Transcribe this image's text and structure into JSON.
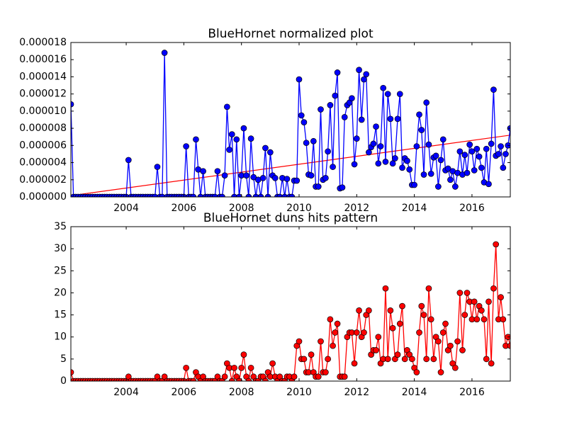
{
  "chart_data": [
    {
      "type": "line",
      "title": "BlueHornet normalized plot",
      "xlim": [
        2002.08,
        2017.33
      ],
      "xticks": [
        2004,
        2006,
        2008,
        2010,
        2012,
        2014,
        2016
      ],
      "ylim": [
        0,
        1.8e-05
      ],
      "yticks": [
        {
          "value": 0,
          "label": "0.000000"
        },
        {
          "value": 2e-06,
          "label": "0.000002"
        },
        {
          "value": 4e-06,
          "label": "0.000004"
        },
        {
          "value": 6e-06,
          "label": "0.000006"
        },
        {
          "value": 8e-06,
          "label": "0.000008"
        },
        {
          "value": 1e-05,
          "label": "0.000010"
        },
        {
          "value": 1.2e-05,
          "label": "0.000012"
        },
        {
          "value": 1.4e-05,
          "label": "0.000014"
        },
        {
          "value": 1.6e-05,
          "label": "0.000016"
        },
        {
          "value": 1.8e-05,
          "label": "0.000018"
        }
      ],
      "x": [
        2002.08,
        2002.17,
        2002.25,
        2002.33,
        2002.42,
        2002.5,
        2002.58,
        2002.67,
        2002.75,
        2002.83,
        2002.92,
        2003,
        2003.08,
        2003.17,
        2003.25,
        2003.33,
        2003.42,
        2003.5,
        2003.58,
        2003.67,
        2003.75,
        2003.83,
        2003.92,
        2004,
        2004.08,
        2004.17,
        2004.25,
        2004.33,
        2004.42,
        2004.5,
        2004.58,
        2004.67,
        2004.75,
        2004.83,
        2004.92,
        2005,
        2005.08,
        2005.17,
        2005.25,
        2005.33,
        2005.42,
        2005.5,
        2005.58,
        2005.67,
        2005.75,
        2005.83,
        2005.92,
        2006,
        2006.08,
        2006.17,
        2006.25,
        2006.33,
        2006.42,
        2006.5,
        2006.58,
        2006.67,
        2006.75,
        2006.83,
        2006.92,
        2007,
        2007.08,
        2007.17,
        2007.25,
        2007.33,
        2007.42,
        2007.5,
        2007.58,
        2007.67,
        2007.75,
        2007.83,
        2007.92,
        2008,
        2008.08,
        2008.17,
        2008.25,
        2008.33,
        2008.42,
        2008.5,
        2008.58,
        2008.67,
        2008.75,
        2008.83,
        2008.92,
        2009,
        2009.08,
        2009.17,
        2009.25,
        2009.33,
        2009.42,
        2009.5,
        2009.58,
        2009.67,
        2009.75,
        2009.83,
        2009.92,
        2010,
        2010.08,
        2010.17,
        2010.25,
        2010.33,
        2010.42,
        2010.5,
        2010.58,
        2010.67,
        2010.75,
        2010.83,
        2010.92,
        2011,
        2011.08,
        2011.17,
        2011.25,
        2011.33,
        2011.42,
        2011.5,
        2011.58,
        2011.67,
        2011.75,
        2011.83,
        2011.92,
        2012,
        2012.08,
        2012.17,
        2012.25,
        2012.33,
        2012.42,
        2012.5,
        2012.58,
        2012.67,
        2012.75,
        2012.83,
        2012.92,
        2013,
        2013.08,
        2013.17,
        2013.25,
        2013.33,
        2013.42,
        2013.5,
        2013.58,
        2013.67,
        2013.75,
        2013.83,
        2013.92,
        2014,
        2014.08,
        2014.17,
        2014.25,
        2014.33,
        2014.42,
        2014.5,
        2014.58,
        2014.67,
        2014.75,
        2014.83,
        2014.92,
        2015,
        2015.08,
        2015.17,
        2015.25,
        2015.33,
        2015.42,
        2015.5,
        2015.58,
        2015.67,
        2015.75,
        2015.83,
        2015.92,
        2016,
        2016.08,
        2016.17,
        2016.25,
        2016.33,
        2016.42,
        2016.5,
        2016.58,
        2016.67,
        2016.75,
        2016.83,
        2016.92,
        2017,
        2017.08,
        2017.17,
        2017.25,
        2017.33
      ],
      "series": [
        {
          "color": "#0000ff",
          "values": [
            1.08e-05,
            0,
            0,
            0,
            0,
            0,
            0,
            0,
            0,
            0,
            0,
            0,
            0,
            0,
            0,
            0,
            0,
            0,
            0,
            0,
            0,
            0,
            0,
            0,
            4.3e-06,
            0,
            0,
            0,
            0,
            0,
            0,
            0,
            0,
            0,
            0,
            0,
            3.5e-06,
            0,
            0,
            1.68e-05,
            0,
            0,
            0,
            0,
            0,
            0,
            0,
            0,
            5.9e-06,
            0,
            0,
            0,
            6.7e-06,
            3.2e-06,
            0,
            3e-06,
            0,
            0,
            0,
            0,
            0,
            3e-06,
            0,
            0,
            2.5e-06,
            1.05e-05,
            5.5e-06,
            7.3e-06,
            0,
            6.7e-06,
            0,
            2.5e-06,
            8e-06,
            2.5e-06,
            0,
            6.8e-06,
            2.3e-06,
            0,
            2e-06,
            0,
            2.2e-06,
            5.7e-06,
            0,
            5.2e-06,
            2.5e-06,
            2.2e-06,
            0,
            0,
            2.2e-06,
            0,
            2.1e-06,
            0,
            0,
            1.9e-06,
            1.9e-06,
            1.37e-05,
            9.5e-06,
            8.7e-06,
            6.3e-06,
            2.6e-06,
            2.5e-06,
            6.5e-06,
            1.2e-06,
            1.2e-06,
            1.02e-05,
            2e-06,
            2.2e-06,
            5.3e-06,
            1.07e-05,
            3.5e-06,
            1.18e-05,
            1.45e-05,
            1e-06,
            1.1e-06,
            9.3e-06,
            1.07e-05,
            1.1e-05,
            1.15e-05,
            3.8e-06,
            6.8e-06,
            1.48e-05,
            9e-06,
            1.37e-05,
            1.43e-05,
            5.2e-06,
            5.8e-06,
            6.2e-06,
            8.2e-06,
            3.9e-06,
            5.9e-06,
            1.27e-05,
            4.1e-06,
            1.2e-05,
            9.1e-06,
            3.9e-06,
            4.5e-06,
            9.1e-06,
            1.2e-05,
            3.4e-06,
            4.5e-06,
            4.2e-06,
            3.2e-06,
            1.4e-06,
            1.4e-06,
            5.9e-06,
            9.6e-06,
            7.8e-06,
            2.6e-06,
            1.1e-05,
            6.1e-06,
            2.7e-06,
            4.6e-06,
            4.8e-06,
            1.2e-06,
            4.3e-06,
            6.7e-06,
            3.1e-06,
            3.3e-06,
            2e-06,
            3e-06,
            1.2e-06,
            2.8e-06,
            5.3e-06,
            2.6e-06,
            4.9e-06,
            2.8e-06,
            6.1e-06,
            5.3e-06,
            3.1e-06,
            5.6e-06,
            4.7e-06,
            3.4e-06,
            1.7e-06,
            5.6e-06,
            1.5e-06,
            6.2e-06,
            1.25e-05,
            4.8e-06,
            5e-06,
            5.9e-06,
            3.4e-06,
            5e-06,
            6e-06,
            8e-06
          ]
        }
      ],
      "trend_line": {
        "color": "#ff0000",
        "x": [
          2002.08,
          2017.33
        ],
        "values": [
          1.5e-07,
          7.2e-06
        ]
      }
    },
    {
      "type": "line",
      "title": "BlueHornet duns hits pattern",
      "xlim": [
        2002.08,
        2017.33
      ],
      "xticks": [
        2004,
        2006,
        2008,
        2010,
        2012,
        2014,
        2016
      ],
      "ylim": [
        0,
        35
      ],
      "yticks": [
        0,
        5,
        10,
        15,
        20,
        25,
        30,
        35
      ],
      "x": [
        2002.08,
        2002.17,
        2002.25,
        2002.33,
        2002.42,
        2002.5,
        2002.58,
        2002.67,
        2002.75,
        2002.83,
        2002.92,
        2003,
        2003.08,
        2003.17,
        2003.25,
        2003.33,
        2003.42,
        2003.5,
        2003.58,
        2003.67,
        2003.75,
        2003.83,
        2003.92,
        2004,
        2004.08,
        2004.17,
        2004.25,
        2004.33,
        2004.42,
        2004.5,
        2004.58,
        2004.67,
        2004.75,
        2004.83,
        2004.92,
        2005,
        2005.08,
        2005.17,
        2005.25,
        2005.33,
        2005.42,
        2005.5,
        2005.58,
        2005.67,
        2005.75,
        2005.83,
        2005.92,
        2006,
        2006.08,
        2006.17,
        2006.25,
        2006.33,
        2006.42,
        2006.5,
        2006.58,
        2006.67,
        2006.75,
        2006.83,
        2006.92,
        2007,
        2007.08,
        2007.17,
        2007.25,
        2007.33,
        2007.42,
        2007.5,
        2007.58,
        2007.67,
        2007.75,
        2007.83,
        2007.92,
        2008,
        2008.08,
        2008.17,
        2008.25,
        2008.33,
        2008.42,
        2008.5,
        2008.58,
        2008.67,
        2008.75,
        2008.83,
        2008.92,
        2009,
        2009.08,
        2009.17,
        2009.25,
        2009.33,
        2009.42,
        2009.5,
        2009.58,
        2009.67,
        2009.75,
        2009.83,
        2009.92,
        2010,
        2010.08,
        2010.17,
        2010.25,
        2010.33,
        2010.42,
        2010.5,
        2010.58,
        2010.67,
        2010.75,
        2010.83,
        2010.92,
        2011,
        2011.08,
        2011.17,
        2011.25,
        2011.33,
        2011.42,
        2011.5,
        2011.58,
        2011.67,
        2011.75,
        2011.83,
        2011.92,
        2012,
        2012.08,
        2012.17,
        2012.25,
        2012.33,
        2012.42,
        2012.5,
        2012.58,
        2012.67,
        2012.75,
        2012.83,
        2012.92,
        2013,
        2013.08,
        2013.17,
        2013.25,
        2013.33,
        2013.42,
        2013.5,
        2013.58,
        2013.67,
        2013.75,
        2013.83,
        2013.92,
        2014,
        2014.08,
        2014.17,
        2014.25,
        2014.33,
        2014.42,
        2014.5,
        2014.58,
        2014.67,
        2014.75,
        2014.83,
        2014.92,
        2015,
        2015.08,
        2015.17,
        2015.25,
        2015.33,
        2015.42,
        2015.5,
        2015.58,
        2015.67,
        2015.75,
        2015.83,
        2015.92,
        2016,
        2016.08,
        2016.17,
        2016.25,
        2016.33,
        2016.42,
        2016.5,
        2016.58,
        2016.67,
        2016.75,
        2016.83,
        2016.92,
        2017,
        2017.08,
        2017.17,
        2017.25,
        2017.33
      ],
      "series": [
        {
          "color": "#ff0000",
          "values": [
            2,
            0,
            0,
            0,
            0,
            0,
            0,
            0,
            0,
            0,
            0,
            0,
            0,
            0,
            0,
            0,
            0,
            0,
            0,
            0,
            0,
            0,
            0,
            0,
            1,
            0,
            0,
            0,
            0,
            0,
            0,
            0,
            0,
            0,
            0,
            0,
            1,
            0,
            0,
            1,
            0,
            0,
            0,
            0,
            0,
            0,
            0,
            0,
            3,
            0,
            0,
            0,
            2,
            1,
            0,
            1,
            0,
            0,
            0,
            0,
            0,
            1,
            0,
            0,
            1,
            4,
            3,
            0,
            3,
            1,
            0,
            3,
            6,
            1,
            0,
            3,
            1,
            0,
            0,
            1,
            1,
            0,
            2,
            1,
            4,
            1,
            0,
            1,
            0,
            0,
            1,
            1,
            0,
            1,
            8,
            9,
            5,
            5,
            2,
            2,
            6,
            2,
            1,
            1,
            9,
            2,
            2,
            5,
            14,
            8,
            11,
            13,
            1,
            1,
            1,
            10,
            11,
            11,
            4,
            11,
            16,
            10,
            11,
            15,
            16,
            6,
            7,
            7,
            10,
            4,
            5,
            21,
            5,
            16,
            12,
            5,
            6,
            13,
            17,
            5,
            7,
            6,
            5,
            3,
            2,
            11,
            17,
            15,
            5,
            21,
            14,
            5,
            10,
            9,
            2,
            11,
            13,
            7,
            8,
            4,
            3,
            9,
            20,
            7,
            15,
            20,
            18,
            14,
            18,
            14,
            17,
            16,
            14,
            5,
            18,
            4,
            21,
            31,
            14,
            19,
            14,
            8,
            10,
            8
          ]
        }
      ]
    }
  ]
}
